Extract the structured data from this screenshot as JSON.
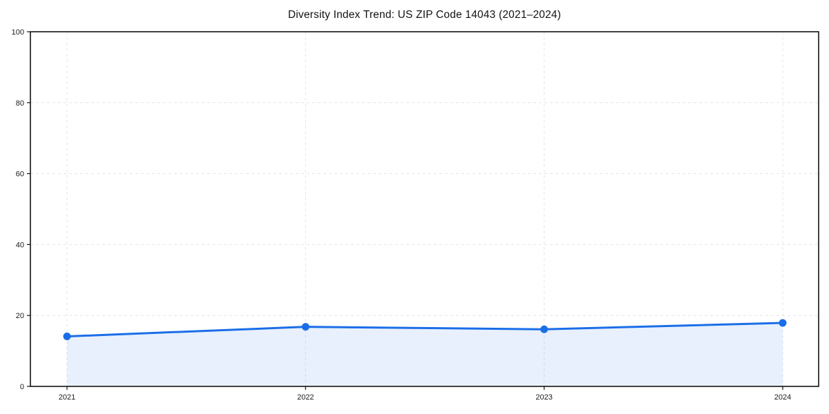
{
  "page": {
    "background": "#ffffff"
  },
  "chart_data": {
    "type": "area",
    "title": "Diversity Index Trend: US ZIP Code 14043 (2021–2024)",
    "x": [
      2021,
      2022,
      2023,
      2024
    ],
    "xtick_labels": [
      "2021",
      "2022",
      "2023",
      "2024"
    ],
    "series": [
      {
        "name": "Diversity Index",
        "values": [
          14.1,
          16.8,
          16.1,
          17.9
        ]
      }
    ],
    "ylim": [
      0,
      100
    ],
    "yticks": [
      0,
      20,
      40,
      60,
      80,
      100
    ],
    "ytick_labels": [
      "0",
      "20",
      "40",
      "60",
      "80",
      "100"
    ],
    "xlabel": "",
    "ylabel": "",
    "legend": "none",
    "grid": "dashed-both-axes",
    "frame": "full-box",
    "colors": {
      "line": "#1a6ee8",
      "marker": "#1a6ee8",
      "area_fill": "#1a6ee8",
      "area_fill_opacity": "0.10",
      "grid": "#e4e4e4",
      "spine": "#111111",
      "tick": "#111111",
      "tick_label": "#1a1a1a",
      "title": "#111111"
    }
  }
}
